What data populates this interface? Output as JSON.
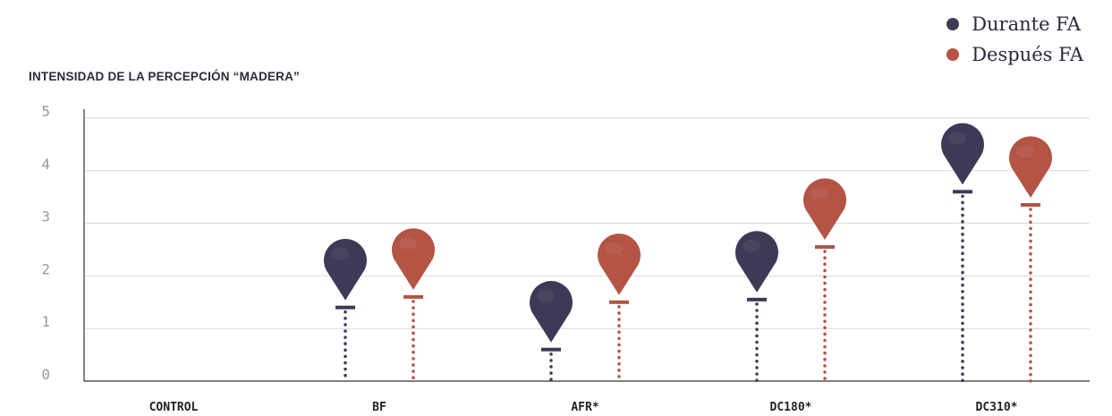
{
  "chart_data": {
    "type": "scatter",
    "title": "INTENSIDAD DE LA PERCEPCIÓN “MADERA”",
    "categories": [
      "CONTROL",
      "BF",
      "AFR*",
      "DC180*",
      "DC310*"
    ],
    "yticks": [
      "0",
      "1",
      "2",
      "3",
      "4",
      "5"
    ],
    "ylim": [
      0,
      5
    ],
    "grid": true,
    "legend_position": "top-right",
    "series": [
      {
        "name": "Durante FA",
        "color": "#3e3a55",
        "values": [
          null,
          1.4,
          0.6,
          1.55,
          3.6
        ]
      },
      {
        "name": "Después FA",
        "color": "#b35445",
        "values": [
          null,
          1.6,
          1.5,
          2.55,
          3.35
        ]
      }
    ]
  }
}
